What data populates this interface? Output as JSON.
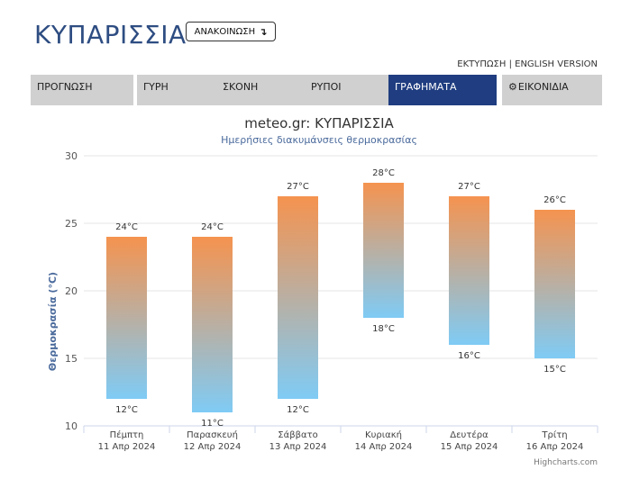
{
  "header": {
    "title": "ΚΥΠΑΡΙΣΣΙΑ",
    "announce_label": "ΑΝΑΚΟΙΝΩΣΗ",
    "announce_icon": "turn-down-arrow-icon",
    "print_label": "ΕΚΤΥΠΩΣΗ",
    "separator": "|",
    "english_label": "ENGLISH VERSION"
  },
  "tabs": [
    {
      "label": "ΠΡΟΓΝΩΣΗ"
    },
    {
      "label": "ΓΥΡΗ"
    },
    {
      "label": "ΣΚΟΝΗ"
    },
    {
      "label": "ΡΥΠΟΙ"
    },
    {
      "label": "ΓΡΑΦΗΜΑΤΑ",
      "active": true
    },
    {
      "label": "ΕΙΚΟΝΙΔΙΑ",
      "icon": "gear-icon"
    }
  ],
  "colors": {
    "title": "#2e4d82",
    "active_tab": "#1f3d80",
    "bar_top": "#f5934f",
    "bar_bottom": "#7fcbf5",
    "subtitle": "#4a6a9c"
  },
  "chart_data": {
    "type": "bar",
    "subtype": "floating range",
    "title": "meteo.gr: ΚΥΠΑΡΙΣΣΙΑ",
    "subtitle": "Ημερήσιες διακυμάνσεις θερμοκρασίας",
    "ylabel": "Θερμοκρασία (°C)",
    "xlabel": "",
    "ylim": [
      10,
      30
    ],
    "yticks": [
      10,
      15,
      20,
      25,
      30
    ],
    "grid": true,
    "categories": [
      [
        "Πέμπτη",
        "11 Απρ 2024"
      ],
      [
        "Παρασκευή",
        "12 Απρ 2024"
      ],
      [
        "Σάββατο",
        "13 Απρ 2024"
      ],
      [
        "Κυριακή",
        "14 Απρ 2024"
      ],
      [
        "Δευτέρα",
        "15 Απρ 2024"
      ],
      [
        "Τρίτη",
        "16 Απρ 2024"
      ]
    ],
    "low": [
      12,
      11,
      12,
      18,
      16,
      15
    ],
    "high": [
      24,
      24,
      27,
      28,
      27,
      26
    ],
    "unit": "°C",
    "credits": "Highcharts.com"
  }
}
